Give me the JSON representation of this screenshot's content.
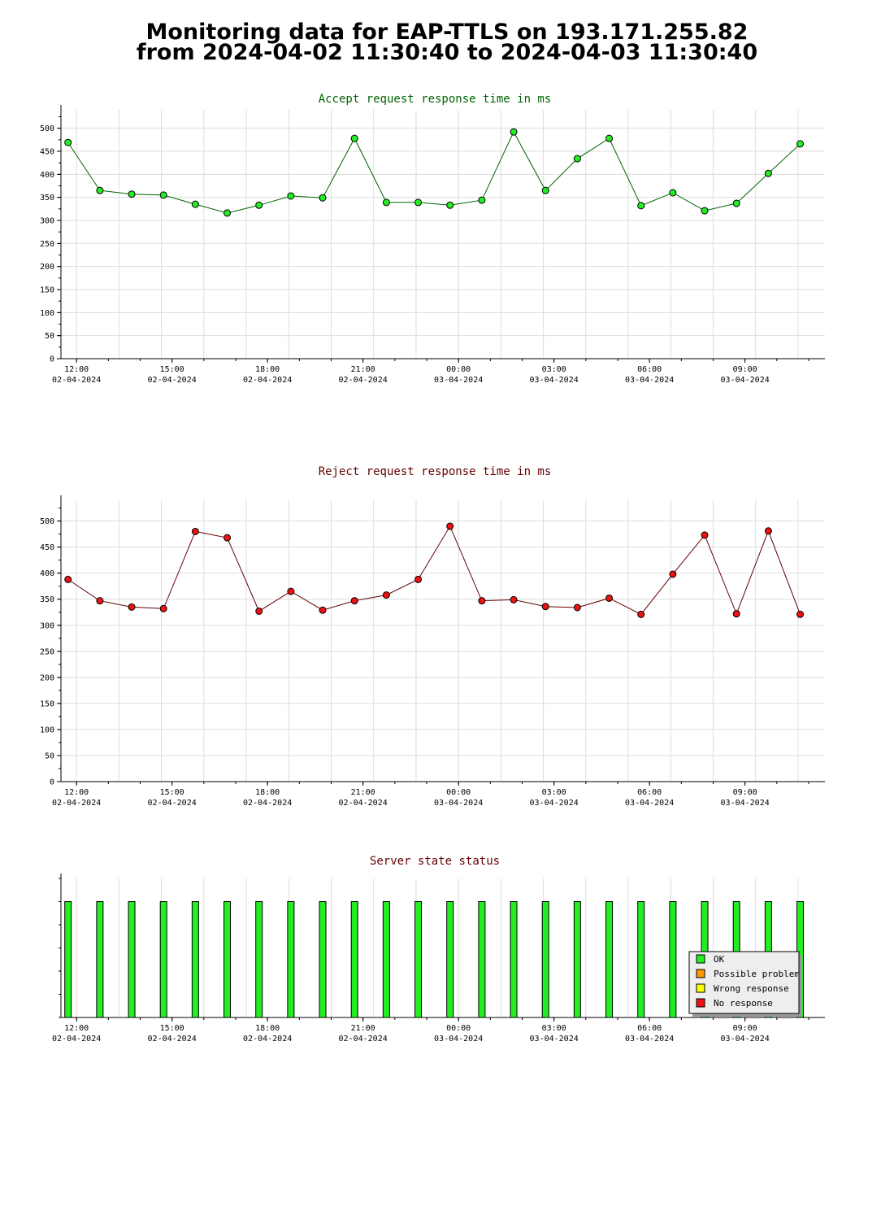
{
  "header": {
    "title_line1": "Monitoring data for EAP-TTLS on 193.171.255.82",
    "title_line2": "from 2024-04-02 11:30:40 to 2024-04-03 11:30:40"
  },
  "colors": {
    "accept_title": "#006400",
    "reject_title": "#640000",
    "status_title": "#640000",
    "grid": "#dddddd",
    "ok": "#22ee22",
    "possible_problem": "#ff9900",
    "wrong_response": "#ffff00",
    "no_response": "#ee1111"
  },
  "x_axis": {
    "start": "2024-04-02 11:30:40",
    "end": "2024-04-03 11:30:40",
    "tick_times": [
      "12:00",
      "15:00",
      "18:00",
      "21:00",
      "00:00",
      "03:00",
      "06:00",
      "09:00"
    ],
    "tick_dates": [
      "02-04-2024",
      "02-04-2024",
      "02-04-2024",
      "02-04-2024",
      "03-04-2024",
      "03-04-2024",
      "03-04-2024",
      "03-04-2024"
    ]
  },
  "chart_data": [
    {
      "type": "line",
      "title": "Accept request response time in ms",
      "x": [
        "2024-04-02 11:44",
        "2024-04-02 12:44",
        "2024-04-02 13:44",
        "2024-04-02 14:44",
        "2024-04-02 15:44",
        "2024-04-02 16:44",
        "2024-04-02 17:44",
        "2024-04-02 18:44",
        "2024-04-02 19:44",
        "2024-04-02 20:44",
        "2024-04-02 21:44",
        "2024-04-02 22:44",
        "2024-04-02 23:44",
        "2024-04-03 00:44",
        "2024-04-03 01:44",
        "2024-04-03 02:44",
        "2024-04-03 03:44",
        "2024-04-03 04:44",
        "2024-04-03 05:44",
        "2024-04-03 06:44",
        "2024-04-03 07:44",
        "2024-04-03 08:44",
        "2024-04-03 09:44",
        "2024-04-03 10:44"
      ],
      "values": [
        469,
        365,
        357,
        355,
        335,
        316,
        333,
        353,
        349,
        478,
        339,
        339,
        333,
        344,
        492,
        365,
        434,
        478,
        332,
        360,
        321,
        337,
        402,
        466
      ],
      "ylim": [
        0,
        540
      ],
      "yticks": [
        0,
        50,
        100,
        150,
        200,
        250,
        300,
        350,
        400,
        450,
        500
      ],
      "marker_color": "#22ee22",
      "line_color": "#006400",
      "grid": true
    },
    {
      "type": "line",
      "title": "Reject request response time in ms",
      "x": [
        "2024-04-02 11:44",
        "2024-04-02 12:44",
        "2024-04-02 13:44",
        "2024-04-02 14:44",
        "2024-04-02 15:44",
        "2024-04-02 16:44",
        "2024-04-02 17:44",
        "2024-04-02 18:44",
        "2024-04-02 19:44",
        "2024-04-02 20:44",
        "2024-04-02 21:44",
        "2024-04-02 22:44",
        "2024-04-02 23:44",
        "2024-04-03 00:44",
        "2024-04-03 01:44",
        "2024-04-03 02:44",
        "2024-04-03 03:44",
        "2024-04-03 04:44",
        "2024-04-03 05:44",
        "2024-04-03 06:44",
        "2024-04-03 07:44",
        "2024-04-03 08:44",
        "2024-04-03 09:44",
        "2024-04-03 10:44"
      ],
      "values": [
        388,
        347,
        335,
        332,
        480,
        468,
        327,
        365,
        329,
        347,
        358,
        388,
        490,
        347,
        349,
        336,
        334,
        352,
        321,
        398,
        473,
        322,
        481,
        321
      ],
      "ylim": [
        0,
        540
      ],
      "yticks": [
        0,
        50,
        100,
        150,
        200,
        250,
        300,
        350,
        400,
        450,
        500
      ],
      "marker_color": "#ee1111",
      "line_color": "#640000",
      "grid": true
    },
    {
      "type": "bar",
      "title": "Server state status",
      "x": [
        "2024-04-02 11:44",
        "2024-04-02 12:44",
        "2024-04-02 13:44",
        "2024-04-02 14:44",
        "2024-04-02 15:44",
        "2024-04-02 16:44",
        "2024-04-02 17:44",
        "2024-04-02 18:44",
        "2024-04-02 19:44",
        "2024-04-02 20:44",
        "2024-04-02 21:44",
        "2024-04-02 22:44",
        "2024-04-02 23:44",
        "2024-04-03 00:44",
        "2024-04-03 01:44",
        "2024-04-03 02:44",
        "2024-04-03 03:44",
        "2024-04-03 04:44",
        "2024-04-03 05:44",
        "2024-04-03 06:44",
        "2024-04-03 07:44",
        "2024-04-03 08:44",
        "2024-04-03 09:44",
        "2024-04-03 10:44"
      ],
      "states": [
        "OK",
        "OK",
        "OK",
        "OK",
        "OK",
        "OK",
        "OK",
        "OK",
        "OK",
        "OK",
        "OK",
        "OK",
        "OK",
        "OK",
        "OK",
        "OK",
        "OK",
        "OK",
        "OK",
        "OK",
        "OK",
        "OK",
        "OK",
        "OK"
      ],
      "values": [
        1,
        1,
        1,
        1,
        1,
        1,
        1,
        1,
        1,
        1,
        1,
        1,
        1,
        1,
        1,
        1,
        1,
        1,
        1,
        1,
        1,
        1,
        1,
        1
      ],
      "ylim": [
        0,
        1.2
      ],
      "legend": [
        "OK",
        "Possible problem",
        "Wrong response",
        "No response"
      ],
      "legend_position": "bottom-right",
      "grid": true
    }
  ]
}
